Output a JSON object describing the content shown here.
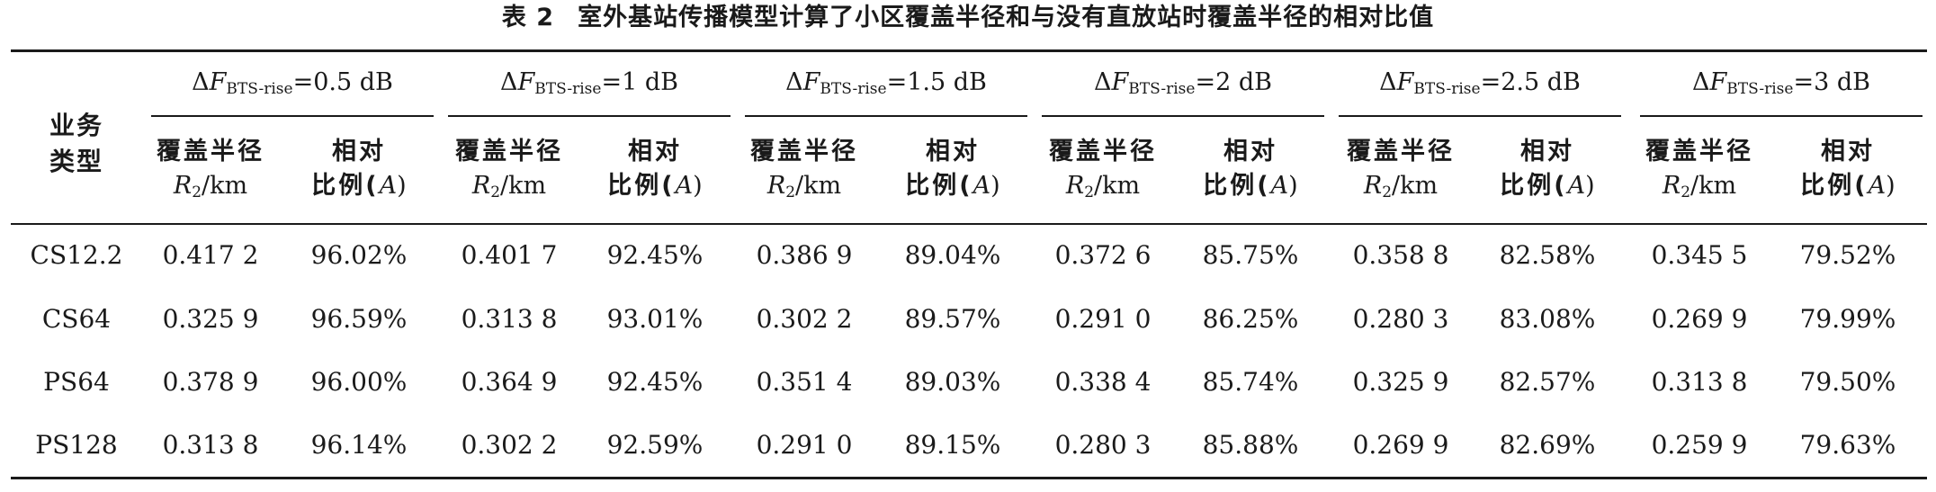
{
  "caption": {
    "number": "表 2",
    "text": "室外基站传播模型计算了小区覆盖半径和与没有直放站时覆盖半径的相对比值"
  },
  "header": {
    "stub_line1": "业务",
    "stub_line2": "类型",
    "groups": [
      {
        "delta": "Δ",
        "var": "F",
        "subscript": "BTS-rise",
        "value": "=0.5 dB"
      },
      {
        "delta": "Δ",
        "var": "F",
        "subscript": "BTS-rise",
        "value": "=1 dB"
      },
      {
        "delta": "Δ",
        "var": "F",
        "subscript": "BTS-rise",
        "value": "=1.5 dB"
      },
      {
        "delta": "Δ",
        "var": "F",
        "subscript": "BTS-rise",
        "value": "=2 dB"
      },
      {
        "delta": "Δ",
        "var": "F",
        "subscript": "BTS-rise",
        "value": "=2.5 dB"
      },
      {
        "delta": "Δ",
        "var": "F",
        "subscript": "BTS-rise",
        "value": "=3 dB"
      }
    ],
    "col_radius": {
      "line1": "覆盖半径",
      "var": "R",
      "subscript": "2",
      "unit": "/km"
    },
    "col_ratio": {
      "line1": "相对",
      "line2_pre": "比例(",
      "var": "A",
      "line2_post": ")"
    }
  },
  "rows": [
    {
      "service": "CS12.2",
      "values": [
        "0.417 2",
        "96.02%",
        "0.401 7",
        "92.45%",
        "0.386 9",
        "89.04%",
        "0.372 6",
        "85.75%",
        "0.358 8",
        "82.58%",
        "0.345 5",
        "79.52%"
      ]
    },
    {
      "service": "CS64",
      "values": [
        "0.325 9",
        "96.59%",
        "0.313 8",
        "93.01%",
        "0.302 2",
        "89.57%",
        "0.291 0",
        "86.25%",
        "0.280 3",
        "83.08%",
        "0.269 9",
        "79.99%"
      ]
    },
    {
      "service": "PS64",
      "values": [
        "0.378 9",
        "96.00%",
        "0.364 9",
        "92.45%",
        "0.351 4",
        "89.03%",
        "0.338 4",
        "85.74%",
        "0.325 9",
        "82.57%",
        "0.313 8",
        "79.50%"
      ]
    },
    {
      "service": "PS128",
      "values": [
        "0.313 8",
        "96.14%",
        "0.302 2",
        "92.59%",
        "0.291 0",
        "89.15%",
        "0.280 3",
        "85.88%",
        "0.269 9",
        "82.69%",
        "0.259 9",
        "79.63%"
      ]
    }
  ]
}
